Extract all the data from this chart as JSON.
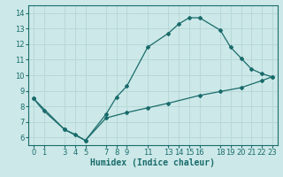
{
  "xlabel": "Humidex (Indice chaleur)",
  "bg_color": "#cce8e8",
  "line_color": "#1a6b6b",
  "grid_color": "#b8d8d8",
  "x_main": [
    0,
    1,
    3,
    4,
    5,
    7,
    8,
    9,
    11,
    13,
    14,
    15,
    16,
    18,
    19,
    20,
    21,
    22,
    23
  ],
  "y_main": [
    8.5,
    7.7,
    6.5,
    6.2,
    5.8,
    7.5,
    8.6,
    9.3,
    11.8,
    12.7,
    13.3,
    13.7,
    13.7,
    12.9,
    11.8,
    11.1,
    10.4,
    10.1,
    9.9
  ],
  "x_low": [
    0,
    3,
    5,
    7,
    9,
    11,
    13,
    16,
    18,
    20,
    22,
    23
  ],
  "y_low": [
    8.5,
    6.5,
    5.8,
    7.25,
    7.6,
    7.9,
    8.2,
    8.7,
    8.95,
    9.2,
    9.65,
    9.9
  ],
  "xlim": [
    -0.5,
    23.5
  ],
  "ylim": [
    5.5,
    14.5
  ],
  "xticks": [
    0,
    1,
    3,
    4,
    5,
    7,
    8,
    9,
    11,
    13,
    14,
    15,
    16,
    18,
    19,
    20,
    21,
    22,
    23
  ],
  "yticks": [
    6,
    7,
    8,
    9,
    10,
    11,
    12,
    13,
    14
  ],
  "fontsize_label": 7,
  "fontsize_tick": 6.0,
  "marker_size": 2.0,
  "line_width": 0.9
}
